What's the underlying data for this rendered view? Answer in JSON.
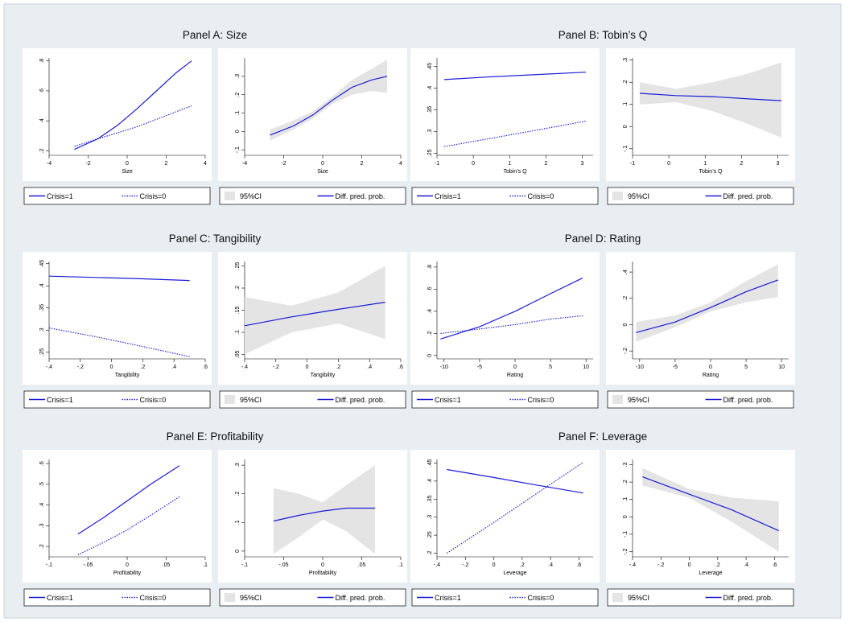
{
  "figure": {
    "background": "#e8eef2",
    "plot_bg": "#ffffff",
    "line_color": "#1a1ad8",
    "ci_color": "#e4e4e4"
  },
  "legend_pp": {
    "solid": "Crisis=1",
    "dotted": "Crisis=0"
  },
  "legend_diff": {
    "ci": "95%CI",
    "line": "Diff. pred. prob."
  },
  "chart_data": [
    {
      "id": "A",
      "title": "Panel A: Size",
      "xlabel": "Size",
      "pp": {
        "type": "line",
        "xlim": [
          -4,
          4
        ],
        "ylim": [
          0.17,
          0.82
        ],
        "xticks": [
          -4,
          -2,
          0,
          2,
          4
        ],
        "xtick_labels": [
          "-4",
          "-2",
          "0",
          "2",
          "4"
        ],
        "yticks": [
          0.2,
          0.4,
          0.6,
          0.8
        ],
        "ytick_labels": [
          ".2",
          ".4",
          ".6",
          ".8"
        ],
        "x": [
          -2.7,
          -1.5,
          -0.5,
          0.5,
          1.5,
          2.5,
          3.3
        ],
        "series": [
          {
            "name": "Crisis=1",
            "style": "solid",
            "values": [
              0.21,
              0.28,
              0.37,
              0.48,
              0.6,
              0.72,
              0.8
            ]
          },
          {
            "name": "Crisis=0",
            "style": "dotted",
            "values": [
              0.23,
              0.28,
              0.32,
              0.36,
              0.41,
              0.46,
              0.5
            ]
          }
        ]
      },
      "diff": {
        "type": "area",
        "xlim": [
          -4,
          4
        ],
        "ylim": [
          -0.13,
          0.4
        ],
        "xticks": [
          -4,
          -2,
          0,
          2,
          4
        ],
        "xtick_labels": [
          "-4",
          "-2",
          "0",
          "2",
          "4"
        ],
        "yticks": [
          -0.1,
          0,
          0.1,
          0.2,
          0.3
        ],
        "ytick_labels": [
          "-.1",
          "0",
          ".1",
          ".2",
          ".3"
        ],
        "x": [
          -2.7,
          -1.5,
          -0.5,
          0.5,
          1.5,
          2.5,
          3.3
        ],
        "values": [
          -0.02,
          0.03,
          0.09,
          0.17,
          0.24,
          0.28,
          0.3
        ],
        "ci_lower": [
          -0.05,
          0.01,
          0.07,
          0.15,
          0.2,
          0.22,
          0.21
        ],
        "ci_upper": [
          0.01,
          0.06,
          0.11,
          0.19,
          0.28,
          0.34,
          0.39
        ]
      }
    },
    {
      "id": "B",
      "title": "Panel B: Tobin’s Q",
      "xlabel": "Tobin’s Q",
      "pp": {
        "type": "line",
        "xlim": [
          -1,
          3.3
        ],
        "ylim": [
          0.245,
          0.47
        ],
        "xticks": [
          -1,
          0,
          1,
          2,
          3
        ],
        "xtick_labels": [
          "-1",
          "0",
          "1",
          "2",
          "3"
        ],
        "yticks": [
          0.25,
          0.3,
          0.35,
          0.4,
          0.45
        ],
        "ytick_labels": [
          ".25",
          ".3",
          ".35",
          ".4",
          ".45"
        ],
        "x": [
          -0.8,
          0.4,
          1.6,
          3.1
        ],
        "series": [
          {
            "name": "Crisis=1",
            "style": "solid",
            "values": [
              0.42,
              0.426,
              0.431,
              0.437
            ]
          },
          {
            "name": "Crisis=0",
            "style": "dotted",
            "values": [
              0.265,
              0.283,
              0.301,
              0.324
            ]
          }
        ]
      },
      "diff": {
        "type": "area",
        "xlim": [
          -1,
          3.3
        ],
        "ylim": [
          -0.13,
          0.31
        ],
        "xticks": [
          -1,
          0,
          1,
          2,
          3
        ],
        "xtick_labels": [
          "-1",
          "0",
          "1",
          "2",
          "3"
        ],
        "yticks": [
          -0.1,
          0,
          0.1,
          0.2,
          0.3
        ],
        "ytick_labels": [
          "-.1",
          "0",
          ".1",
          ".2",
          ".3"
        ],
        "x": [
          -0.8,
          0.2,
          1.2,
          2.2,
          3.1
        ],
        "values": [
          0.15,
          0.14,
          0.135,
          0.125,
          0.117
        ],
        "ci_lower": [
          0.1,
          0.11,
          0.07,
          0.01,
          -0.05
        ],
        "ci_upper": [
          0.2,
          0.17,
          0.2,
          0.24,
          0.29
        ]
      }
    },
    {
      "id": "C",
      "title": "Panel C: Tangibility",
      "xlabel": "Tangibility",
      "pp": {
        "type": "line",
        "xlim": [
          -0.4,
          0.6
        ],
        "ylim": [
          0.235,
          0.455
        ],
        "xticks": [
          -0.4,
          -0.2,
          0,
          0.2,
          0.4,
          0.6
        ],
        "xtick_labels": [
          "-.4",
          "-.2",
          "0",
          ".2",
          ".4",
          ".6"
        ],
        "yticks": [
          0.25,
          0.3,
          0.35,
          0.4,
          0.45
        ],
        "ytick_labels": [
          ".25",
          ".3",
          ".35",
          ".4",
          ".45"
        ],
        "x": [
          -0.4,
          -0.1,
          0.2,
          0.5
        ],
        "series": [
          {
            "name": "Crisis=1",
            "style": "solid",
            "values": [
              0.422,
              0.419,
              0.416,
              0.412
            ]
          },
          {
            "name": "Crisis=0",
            "style": "dotted",
            "values": [
              0.305,
              0.285,
              0.263,
              0.24
            ]
          }
        ]
      },
      "diff": {
        "type": "area",
        "xlim": [
          -0.4,
          0.6
        ],
        "ylim": [
          0.04,
          0.26
        ],
        "xticks": [
          -0.4,
          -0.2,
          0,
          0.2,
          0.4,
          0.6
        ],
        "xtick_labels": [
          "-.4",
          "-.2",
          "0",
          ".2",
          ".4",
          ".6"
        ],
        "yticks": [
          0.05,
          0.1,
          0.15,
          0.2,
          0.25
        ],
        "ytick_labels": [
          ".05",
          ".1",
          ".15",
          ".2",
          ".25"
        ],
        "x": [
          -0.4,
          -0.1,
          0.2,
          0.5
        ],
        "values": [
          0.115,
          0.135,
          0.152,
          0.168
        ],
        "ci_lower": [
          0.05,
          0.1,
          0.12,
          0.085
        ],
        "ci_upper": [
          0.18,
          0.16,
          0.19,
          0.25
        ]
      }
    },
    {
      "id": "D",
      "title": "Panel D: Rating",
      "xlabel": "Rating",
      "pp": {
        "type": "line",
        "xlim": [
          -11,
          11
        ],
        "ylim": [
          -0.03,
          0.85
        ],
        "xticks": [
          -10,
          -5,
          0,
          5,
          10
        ],
        "xtick_labels": [
          "-10",
          "-5",
          "0",
          "5",
          "10"
        ],
        "yticks": [
          0,
          0.2,
          0.4,
          0.6,
          0.8
        ],
        "ytick_labels": [
          "0",
          ".2",
          ".4",
          ".6",
          ".8"
        ],
        "x": [
          -10.5,
          -5,
          0,
          5,
          9.5
        ],
        "series": [
          {
            "name": "Crisis=1",
            "style": "solid",
            "values": [
              0.15,
              0.26,
              0.4,
              0.56,
              0.7
            ]
          },
          {
            "name": "Crisis=0",
            "style": "dotted",
            "values": [
              0.2,
              0.24,
              0.28,
              0.33,
              0.36
            ]
          }
        ]
      },
      "diff": {
        "type": "area",
        "xlim": [
          -11,
          11
        ],
        "ylim": [
          -0.26,
          0.48
        ],
        "xticks": [
          -10,
          -5,
          0,
          5,
          10
        ],
        "xtick_labels": [
          "-10",
          "-5",
          "0",
          "5",
          "10"
        ],
        "yticks": [
          -0.2,
          0,
          0.2,
          0.4
        ],
        "ytick_labels": [
          "-.2",
          "0",
          ".2",
          ".4"
        ],
        "x": [
          -10.5,
          -5,
          0,
          5,
          9.5
        ],
        "values": [
          -0.06,
          0.02,
          0.13,
          0.25,
          0.34
        ],
        "ci_lower": [
          -0.13,
          -0.02,
          0.1,
          0.17,
          0.21
        ],
        "ci_upper": [
          0.02,
          0.07,
          0.17,
          0.33,
          0.46
        ]
      }
    },
    {
      "id": "E",
      "title": "Panel E: Profitability",
      "xlabel": "Profitability",
      "pp": {
        "type": "line",
        "xlim": [
          -0.1,
          0.1
        ],
        "ylim": [
          0.15,
          0.62
        ],
        "xticks": [
          -0.1,
          -0.05,
          0,
          0.05,
          0.1
        ],
        "xtick_labels": [
          "-.1",
          "-.05",
          "0",
          ".05",
          ".1"
        ],
        "yticks": [
          0.2,
          0.3,
          0.4,
          0.5,
          0.6
        ],
        "ytick_labels": [
          ".2",
          ".3",
          ".4",
          ".5",
          ".6"
        ],
        "x": [
          -0.063,
          -0.03,
          0,
          0.03,
          0.067
        ],
        "series": [
          {
            "name": "Crisis=1",
            "style": "solid",
            "values": [
              0.26,
              0.34,
              0.42,
              0.5,
              0.59
            ]
          },
          {
            "name": "Crisis=0",
            "style": "dotted",
            "values": [
              0.16,
              0.22,
              0.28,
              0.35,
              0.44
            ]
          }
        ]
      },
      "diff": {
        "type": "area",
        "xlim": [
          -0.1,
          0.1
        ],
        "ylim": [
          -0.02,
          0.32
        ],
        "xticks": [
          -0.1,
          -0.05,
          0,
          0.05,
          0.1
        ],
        "xtick_labels": [
          "-.1",
          "-.05",
          "0",
          ".05",
          ".1"
        ],
        "yticks": [
          0,
          0.1,
          0.2,
          0.3
        ],
        "ytick_labels": [
          "0",
          ".1",
          ".2",
          ".3"
        ],
        "x": [
          -0.063,
          -0.03,
          0,
          0.03,
          0.067
        ],
        "values": [
          0.105,
          0.125,
          0.14,
          0.15,
          0.15
        ],
        "ci_lower": [
          -0.01,
          0.05,
          0.11,
          0.07,
          -0.01
        ],
        "ci_upper": [
          0.22,
          0.2,
          0.17,
          0.23,
          0.3
        ]
      }
    },
    {
      "id": "F",
      "title": "Panel F: Leverage",
      "xlabel": "Leverage",
      "pp": {
        "type": "line",
        "xlim": [
          -0.4,
          0.7
        ],
        "ylim": [
          0.19,
          0.46
        ],
        "xticks": [
          -0.4,
          -0.2,
          0,
          0.2,
          0.4,
          0.6
        ],
        "xtick_labels": [
          "-.4",
          "-.2",
          "0",
          ".2",
          ".4",
          ".6"
        ],
        "yticks": [
          0.2,
          0.25,
          0.3,
          0.35,
          0.4,
          0.45
        ],
        "ytick_labels": [
          ".2",
          ".25",
          ".3",
          ".35",
          ".4",
          ".45"
        ],
        "x": [
          -0.33,
          0,
          0.3,
          0.63
        ],
        "series": [
          {
            "name": "Crisis=1",
            "style": "solid",
            "values": [
              0.432,
              0.41,
              0.389,
              0.367
            ]
          },
          {
            "name": "Crisis=0",
            "style": "dotted",
            "values": [
              0.2,
              0.285,
              0.365,
              0.452
            ]
          }
        ]
      },
      "diff": {
        "type": "area",
        "xlim": [
          -0.4,
          0.7
        ],
        "ylim": [
          -0.23,
          0.33
        ],
        "xticks": [
          -0.4,
          -0.2,
          0,
          0.2,
          0.4,
          0.6
        ],
        "xtick_labels": [
          "-.4",
          "-.2",
          "0",
          ".2",
          ".4",
          ".6"
        ],
        "yticks": [
          -0.2,
          -0.1,
          0,
          0.1,
          0.2,
          0.3
        ],
        "ytick_labels": [
          "-.2",
          "-.1",
          "0",
          ".1",
          ".2",
          ".3"
        ],
        "x": [
          -0.33,
          0,
          0.3,
          0.63
        ],
        "values": [
          0.23,
          0.13,
          0.04,
          -0.08
        ],
        "ci_lower": [
          0.18,
          0.11,
          -0.03,
          -0.2
        ],
        "ci_upper": [
          0.28,
          0.16,
          0.11,
          0.09
        ]
      }
    }
  ]
}
